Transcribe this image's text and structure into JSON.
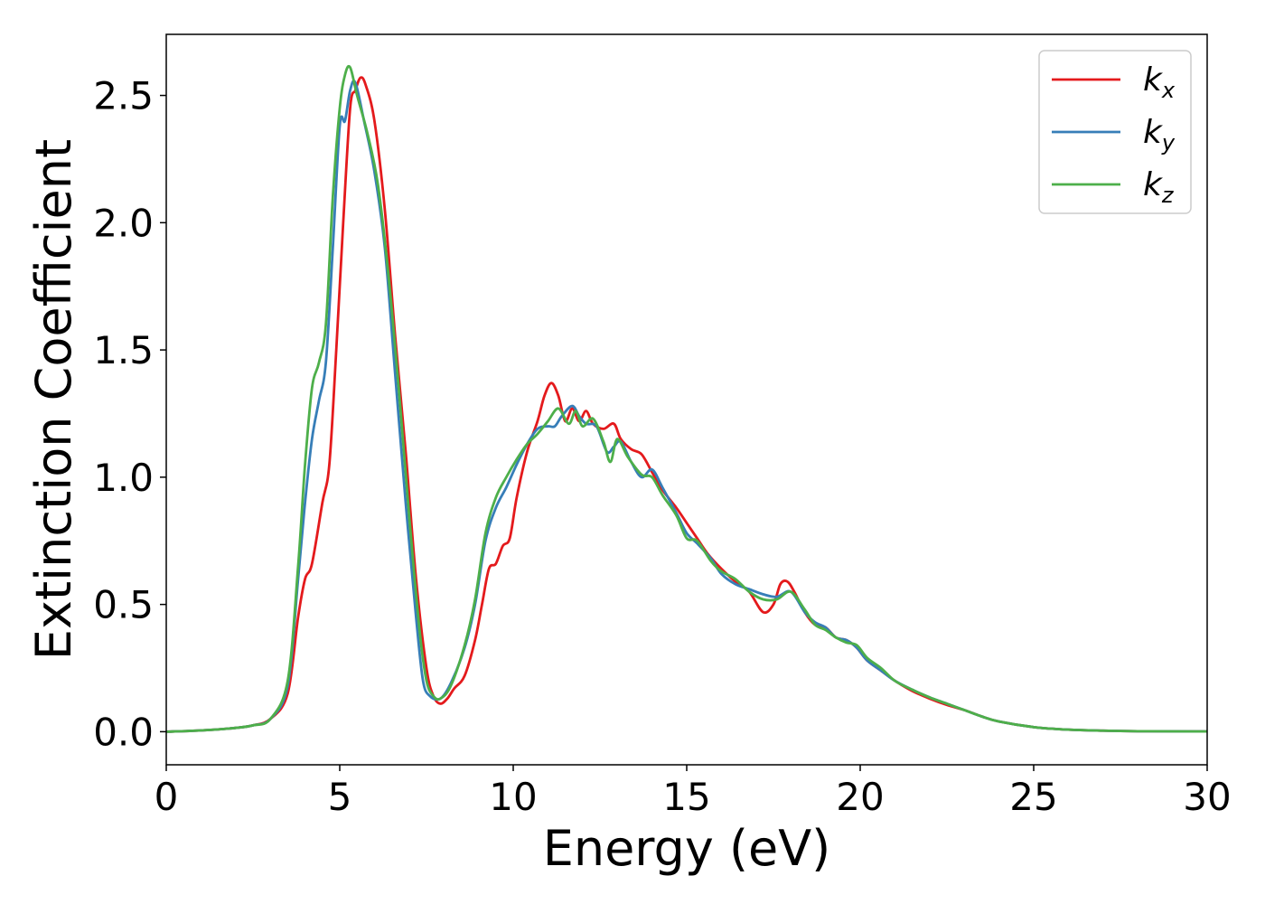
{
  "chart_data": {
    "type": "line",
    "title": "",
    "xlabel": "Energy (eV)",
    "ylabel": "Extinction Coefficient",
    "xlim": [
      0,
      30
    ],
    "ylim": [
      -0.13,
      2.74
    ],
    "xticks": [
      0,
      5,
      10,
      15,
      20,
      25,
      30
    ],
    "xtick_labels": [
      "0",
      "5",
      "10",
      "15",
      "20",
      "25",
      "30"
    ],
    "yticks": [
      0.0,
      0.5,
      1.0,
      1.5,
      2.0,
      2.5
    ],
    "ytick_labels": [
      "0.0",
      "0.5",
      "1.0",
      "1.5",
      "2.0",
      "2.5"
    ],
    "grid": false,
    "legend_position": "top-right",
    "series": [
      {
        "name": "kx",
        "label_base": "k",
        "label_sub": "x",
        "color": "#e41a1c",
        "points": [
          [
            0,
            0.0
          ],
          [
            1,
            0.005
          ],
          [
            2,
            0.015
          ],
          [
            2.5,
            0.025
          ],
          [
            3,
            0.05
          ],
          [
            3.5,
            0.15
          ],
          [
            3.8,
            0.45
          ],
          [
            4.0,
            0.6
          ],
          [
            4.2,
            0.66
          ],
          [
            4.5,
            0.9
          ],
          [
            4.7,
            1.05
          ],
          [
            4.9,
            1.5
          ],
          [
            5.1,
            2.0
          ],
          [
            5.3,
            2.45
          ],
          [
            5.45,
            2.52
          ],
          [
            5.6,
            2.57
          ],
          [
            5.75,
            2.54
          ],
          [
            6.0,
            2.4
          ],
          [
            6.3,
            2.05
          ],
          [
            6.6,
            1.55
          ],
          [
            6.9,
            1.1
          ],
          [
            7.2,
            0.6
          ],
          [
            7.5,
            0.25
          ],
          [
            7.7,
            0.14
          ],
          [
            7.9,
            0.11
          ],
          [
            8.1,
            0.13
          ],
          [
            8.3,
            0.17
          ],
          [
            8.6,
            0.22
          ],
          [
            8.9,
            0.36
          ],
          [
            9.1,
            0.5
          ],
          [
            9.3,
            0.64
          ],
          [
            9.5,
            0.66
          ],
          [
            9.7,
            0.73
          ],
          [
            9.9,
            0.76
          ],
          [
            10.1,
            0.92
          ],
          [
            10.4,
            1.1
          ],
          [
            10.7,
            1.22
          ],
          [
            10.9,
            1.32
          ],
          [
            11.1,
            1.37
          ],
          [
            11.3,
            1.32
          ],
          [
            11.5,
            1.22
          ],
          [
            11.7,
            1.27
          ],
          [
            11.9,
            1.22
          ],
          [
            12.1,
            1.26
          ],
          [
            12.3,
            1.21
          ],
          [
            12.6,
            1.19
          ],
          [
            12.9,
            1.21
          ],
          [
            13.1,
            1.15
          ],
          [
            13.4,
            1.11
          ],
          [
            13.7,
            1.09
          ],
          [
            14.0,
            1.02
          ],
          [
            14.3,
            0.95
          ],
          [
            14.7,
            0.88
          ],
          [
            15.0,
            0.82
          ],
          [
            15.3,
            0.76
          ],
          [
            15.6,
            0.7
          ],
          [
            16.0,
            0.64
          ],
          [
            16.4,
            0.59
          ],
          [
            16.8,
            0.55
          ],
          [
            17.2,
            0.47
          ],
          [
            17.5,
            0.5
          ],
          [
            17.7,
            0.58
          ],
          [
            17.9,
            0.59
          ],
          [
            18.1,
            0.55
          ],
          [
            18.4,
            0.47
          ],
          [
            18.7,
            0.42
          ],
          [
            19.0,
            0.41
          ],
          [
            19.3,
            0.37
          ],
          [
            19.6,
            0.36
          ],
          [
            19.9,
            0.33
          ],
          [
            20.2,
            0.28
          ],
          [
            20.6,
            0.24
          ],
          [
            21.0,
            0.2
          ],
          [
            21.5,
            0.16
          ],
          [
            22,
            0.13
          ],
          [
            22.5,
            0.105
          ],
          [
            23,
            0.085
          ],
          [
            23.5,
            0.06
          ],
          [
            24,
            0.04
          ],
          [
            25,
            0.018
          ],
          [
            26,
            0.008
          ],
          [
            27,
            0.004
          ],
          [
            28,
            0.002
          ],
          [
            30,
            0.001
          ]
        ]
      },
      {
        "name": "ky",
        "label_base": "k",
        "label_sub": "y",
        "color": "#377eb8",
        "points": [
          [
            0,
            0.0
          ],
          [
            1,
            0.005
          ],
          [
            2,
            0.015
          ],
          [
            2.5,
            0.025
          ],
          [
            3,
            0.05
          ],
          [
            3.5,
            0.18
          ],
          [
            3.8,
            0.6
          ],
          [
            4.0,
            0.9
          ],
          [
            4.2,
            1.15
          ],
          [
            4.4,
            1.3
          ],
          [
            4.6,
            1.45
          ],
          [
            4.8,
            1.9
          ],
          [
            5.0,
            2.38
          ],
          [
            5.15,
            2.4
          ],
          [
            5.3,
            2.52
          ],
          [
            5.45,
            2.55
          ],
          [
            5.7,
            2.4
          ],
          [
            6.0,
            2.2
          ],
          [
            6.3,
            1.9
          ],
          [
            6.6,
            1.4
          ],
          [
            6.9,
            0.9
          ],
          [
            7.2,
            0.45
          ],
          [
            7.4,
            0.2
          ],
          [
            7.6,
            0.14
          ],
          [
            7.9,
            0.13
          ],
          [
            8.2,
            0.19
          ],
          [
            8.6,
            0.33
          ],
          [
            8.9,
            0.5
          ],
          [
            9.2,
            0.75
          ],
          [
            9.5,
            0.88
          ],
          [
            9.8,
            0.96
          ],
          [
            10.1,
            1.05
          ],
          [
            10.4,
            1.13
          ],
          [
            10.7,
            1.19
          ],
          [
            11.0,
            1.2
          ],
          [
            11.2,
            1.2
          ],
          [
            11.4,
            1.24
          ],
          [
            11.7,
            1.28
          ],
          [
            11.9,
            1.24
          ],
          [
            12.1,
            1.21
          ],
          [
            12.4,
            1.2
          ],
          [
            12.7,
            1.1
          ],
          [
            12.9,
            1.12
          ],
          [
            13.1,
            1.14
          ],
          [
            13.4,
            1.06
          ],
          [
            13.7,
            1.0
          ],
          [
            14.0,
            1.03
          ],
          [
            14.3,
            0.96
          ],
          [
            14.7,
            0.86
          ],
          [
            15.0,
            0.78
          ],
          [
            15.3,
            0.74
          ],
          [
            15.7,
            0.68
          ],
          [
            16.0,
            0.62
          ],
          [
            16.4,
            0.58
          ],
          [
            16.8,
            0.56
          ],
          [
            17.2,
            0.54
          ],
          [
            17.6,
            0.53
          ],
          [
            18.0,
            0.55
          ],
          [
            18.4,
            0.47
          ],
          [
            18.7,
            0.43
          ],
          [
            19.0,
            0.41
          ],
          [
            19.3,
            0.37
          ],
          [
            19.6,
            0.36
          ],
          [
            19.9,
            0.33
          ],
          [
            20.2,
            0.28
          ],
          [
            20.6,
            0.24
          ],
          [
            21.0,
            0.2
          ],
          [
            21.5,
            0.165
          ],
          [
            22,
            0.135
          ],
          [
            22.5,
            0.11
          ],
          [
            23,
            0.085
          ],
          [
            23.5,
            0.06
          ],
          [
            24,
            0.04
          ],
          [
            25,
            0.018
          ],
          [
            26,
            0.008
          ],
          [
            27,
            0.004
          ],
          [
            28,
            0.002
          ],
          [
            30,
            0.001
          ]
        ]
      },
      {
        "name": "kz",
        "label_base": "k",
        "label_sub": "z",
        "color": "#4daf4a",
        "points": [
          [
            0,
            0.0
          ],
          [
            1,
            0.005
          ],
          [
            2,
            0.015
          ],
          [
            2.5,
            0.025
          ],
          [
            3,
            0.05
          ],
          [
            3.5,
            0.2
          ],
          [
            3.8,
            0.65
          ],
          [
            4.0,
            1.05
          ],
          [
            4.2,
            1.35
          ],
          [
            4.4,
            1.45
          ],
          [
            4.6,
            1.6
          ],
          [
            4.8,
            2.1
          ],
          [
            5.0,
            2.45
          ],
          [
            5.15,
            2.58
          ],
          [
            5.3,
            2.61
          ],
          [
            5.5,
            2.5
          ],
          [
            5.8,
            2.35
          ],
          [
            6.1,
            2.15
          ],
          [
            6.4,
            1.8
          ],
          [
            6.7,
            1.35
          ],
          [
            7.0,
            0.85
          ],
          [
            7.3,
            0.4
          ],
          [
            7.5,
            0.2
          ],
          [
            7.7,
            0.14
          ],
          [
            7.9,
            0.13
          ],
          [
            8.2,
            0.18
          ],
          [
            8.6,
            0.34
          ],
          [
            8.9,
            0.52
          ],
          [
            9.2,
            0.78
          ],
          [
            9.5,
            0.92
          ],
          [
            9.8,
            1.0
          ],
          [
            10.1,
            1.07
          ],
          [
            10.4,
            1.13
          ],
          [
            10.7,
            1.17
          ],
          [
            11.0,
            1.22
          ],
          [
            11.3,
            1.27
          ],
          [
            11.6,
            1.21
          ],
          [
            11.8,
            1.26
          ],
          [
            12.0,
            1.2
          ],
          [
            12.3,
            1.23
          ],
          [
            12.6,
            1.14
          ],
          [
            12.8,
            1.06
          ],
          [
            13.0,
            1.15
          ],
          [
            13.3,
            1.08
          ],
          [
            13.7,
            1.01
          ],
          [
            14.0,
            1.0
          ],
          [
            14.3,
            0.93
          ],
          [
            14.7,
            0.85
          ],
          [
            15.0,
            0.76
          ],
          [
            15.3,
            0.75
          ],
          [
            15.7,
            0.67
          ],
          [
            16.0,
            0.63
          ],
          [
            16.4,
            0.6
          ],
          [
            16.8,
            0.55
          ],
          [
            17.2,
            0.52
          ],
          [
            17.6,
            0.52
          ],
          [
            18.0,
            0.55
          ],
          [
            18.4,
            0.48
          ],
          [
            18.7,
            0.42
          ],
          [
            19.0,
            0.4
          ],
          [
            19.3,
            0.37
          ],
          [
            19.6,
            0.35
          ],
          [
            19.9,
            0.34
          ],
          [
            20.2,
            0.29
          ],
          [
            20.6,
            0.25
          ],
          [
            21.0,
            0.2
          ],
          [
            21.5,
            0.165
          ],
          [
            22,
            0.135
          ],
          [
            22.5,
            0.11
          ],
          [
            23,
            0.085
          ],
          [
            23.5,
            0.06
          ],
          [
            24,
            0.04
          ],
          [
            25,
            0.018
          ],
          [
            26,
            0.008
          ],
          [
            27,
            0.004
          ],
          [
            28,
            0.002
          ],
          [
            30,
            0.001
          ]
        ]
      }
    ]
  }
}
